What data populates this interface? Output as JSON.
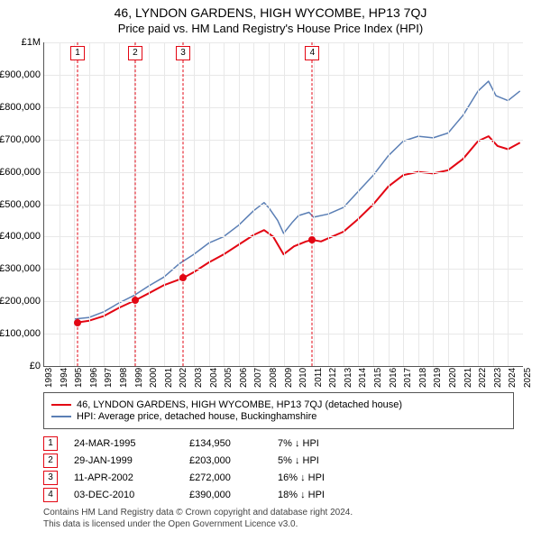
{
  "title": {
    "main": "46, LYNDON GARDENS, HIGH WYCOMBE, HP13 7QJ",
    "sub": "Price paid vs. HM Land Registry's House Price Index (HPI)",
    "fontsize_main": 14,
    "fontsize_sub": 13
  },
  "chart": {
    "type": "line",
    "background_color": "#ffffff",
    "grid_color": "#e8e8e8",
    "axis_color": "#555555",
    "x": {
      "min": 1993,
      "max": 2025,
      "tick_step": 1,
      "labels": [
        "1993",
        "1994",
        "1995",
        "1996",
        "1997",
        "1998",
        "1999",
        "2000",
        "2001",
        "2002",
        "2003",
        "2004",
        "2005",
        "2006",
        "2007",
        "2008",
        "2009",
        "2010",
        "2011",
        "2012",
        "2013",
        "2014",
        "2015",
        "2016",
        "2017",
        "2018",
        "2019",
        "2020",
        "2021",
        "2022",
        "2023",
        "2024",
        "2025"
      ],
      "label_fontsize": 10,
      "label_rotation": -90
    },
    "y": {
      "min": 0,
      "max": 1000000,
      "tick_step": 100000,
      "labels": [
        "£0",
        "£100,000",
        "£200,000",
        "£300,000",
        "£400,000",
        "£500,000",
        "£600,000",
        "£700,000",
        "£800,000",
        "£900,000",
        "£1M"
      ],
      "label_fontsize": 11
    },
    "series": [
      {
        "id": "price_paid",
        "label": "46, LYNDON GARDENS, HIGH WYCOMBE, HP13 7QJ (detached house)",
        "color": "#e30613",
        "line_width": 2,
        "points": [
          [
            1995.23,
            134950
          ],
          [
            1996,
            140000
          ],
          [
            1997,
            155000
          ],
          [
            1998,
            180000
          ],
          [
            1999.08,
            203000
          ],
          [
            2000,
            225000
          ],
          [
            2001,
            250000
          ],
          [
            2002.28,
            272000
          ],
          [
            2003,
            290000
          ],
          [
            2004,
            320000
          ],
          [
            2005,
            345000
          ],
          [
            2006,
            375000
          ],
          [
            2007,
            405000
          ],
          [
            2007.7,
            420000
          ],
          [
            2008.3,
            400000
          ],
          [
            2009,
            345000
          ],
          [
            2009.7,
            370000
          ],
          [
            2010.5,
            385000
          ],
          [
            2010.92,
            390000
          ],
          [
            2011.5,
            385000
          ],
          [
            2012,
            395000
          ],
          [
            2013,
            415000
          ],
          [
            2014,
            455000
          ],
          [
            2015,
            500000
          ],
          [
            2016,
            555000
          ],
          [
            2017,
            590000
          ],
          [
            2018,
            600000
          ],
          [
            2019,
            595000
          ],
          [
            2020,
            605000
          ],
          [
            2021,
            640000
          ],
          [
            2022,
            695000
          ],
          [
            2022.7,
            710000
          ],
          [
            2023.3,
            680000
          ],
          [
            2024,
            670000
          ],
          [
            2024.8,
            690000
          ]
        ]
      },
      {
        "id": "hpi",
        "label": "HPI: Average price, detached house, Buckinghamshire",
        "color": "#5b7fb5",
        "line_width": 1.5,
        "points": [
          [
            1995,
            145000
          ],
          [
            1996,
            150000
          ],
          [
            1997,
            168000
          ],
          [
            1998,
            195000
          ],
          [
            1999,
            218000
          ],
          [
            2000,
            248000
          ],
          [
            2001,
            275000
          ],
          [
            2002,
            315000
          ],
          [
            2003,
            345000
          ],
          [
            2004,
            380000
          ],
          [
            2005,
            400000
          ],
          [
            2006,
            435000
          ],
          [
            2007,
            480000
          ],
          [
            2007.7,
            505000
          ],
          [
            2008,
            490000
          ],
          [
            2008.6,
            450000
          ],
          [
            2009,
            410000
          ],
          [
            2009.6,
            445000
          ],
          [
            2010,
            465000
          ],
          [
            2010.7,
            475000
          ],
          [
            2011,
            460000
          ],
          [
            2012,
            470000
          ],
          [
            2013,
            490000
          ],
          [
            2014,
            540000
          ],
          [
            2015,
            590000
          ],
          [
            2016,
            650000
          ],
          [
            2017,
            695000
          ],
          [
            2018,
            710000
          ],
          [
            2019,
            705000
          ],
          [
            2020,
            720000
          ],
          [
            2021,
            775000
          ],
          [
            2022,
            850000
          ],
          [
            2022.7,
            880000
          ],
          [
            2023.2,
            835000
          ],
          [
            2024,
            820000
          ],
          [
            2024.8,
            850000
          ]
        ]
      }
    ],
    "sale_markers": {
      "color": "#e30613",
      "marker_size": 8,
      "points": [
        {
          "n": 1,
          "x": 1995.23,
          "y": 134950
        },
        {
          "n": 2,
          "x": 1999.08,
          "y": 203000
        },
        {
          "n": 3,
          "x": 2002.28,
          "y": 272000
        },
        {
          "n": 4,
          "x": 2010.92,
          "y": 390000
        }
      ]
    }
  },
  "legend": {
    "border_color": "#555555",
    "fontsize": 11,
    "items": [
      {
        "color": "#e30613",
        "label": "46, LYNDON GARDENS, HIGH WYCOMBE, HP13 7QJ (detached house)"
      },
      {
        "color": "#5b7fb5",
        "label": "HPI: Average price, detached house, Buckinghamshire"
      }
    ]
  },
  "sales_table": {
    "fontsize": 11,
    "arrow": "↓",
    "rows": [
      {
        "n": "1",
        "date": "24-MAR-1995",
        "price": "£134,950",
        "delta": "7% ↓ HPI"
      },
      {
        "n": "2",
        "date": "29-JAN-1999",
        "price": "£203,000",
        "delta": "5% ↓ HPI"
      },
      {
        "n": "3",
        "date": "11-APR-2002",
        "price": "£272,000",
        "delta": "16% ↓ HPI"
      },
      {
        "n": "4",
        "date": "03-DEC-2010",
        "price": "£390,000",
        "delta": "18% ↓ HPI"
      }
    ]
  },
  "footer": {
    "line1": "Contains HM Land Registry data © Crown copyright and database right 2024.",
    "line2": "This data is licensed under the Open Government Licence v3.0.",
    "fontsize": 10,
    "color": "#444444"
  }
}
